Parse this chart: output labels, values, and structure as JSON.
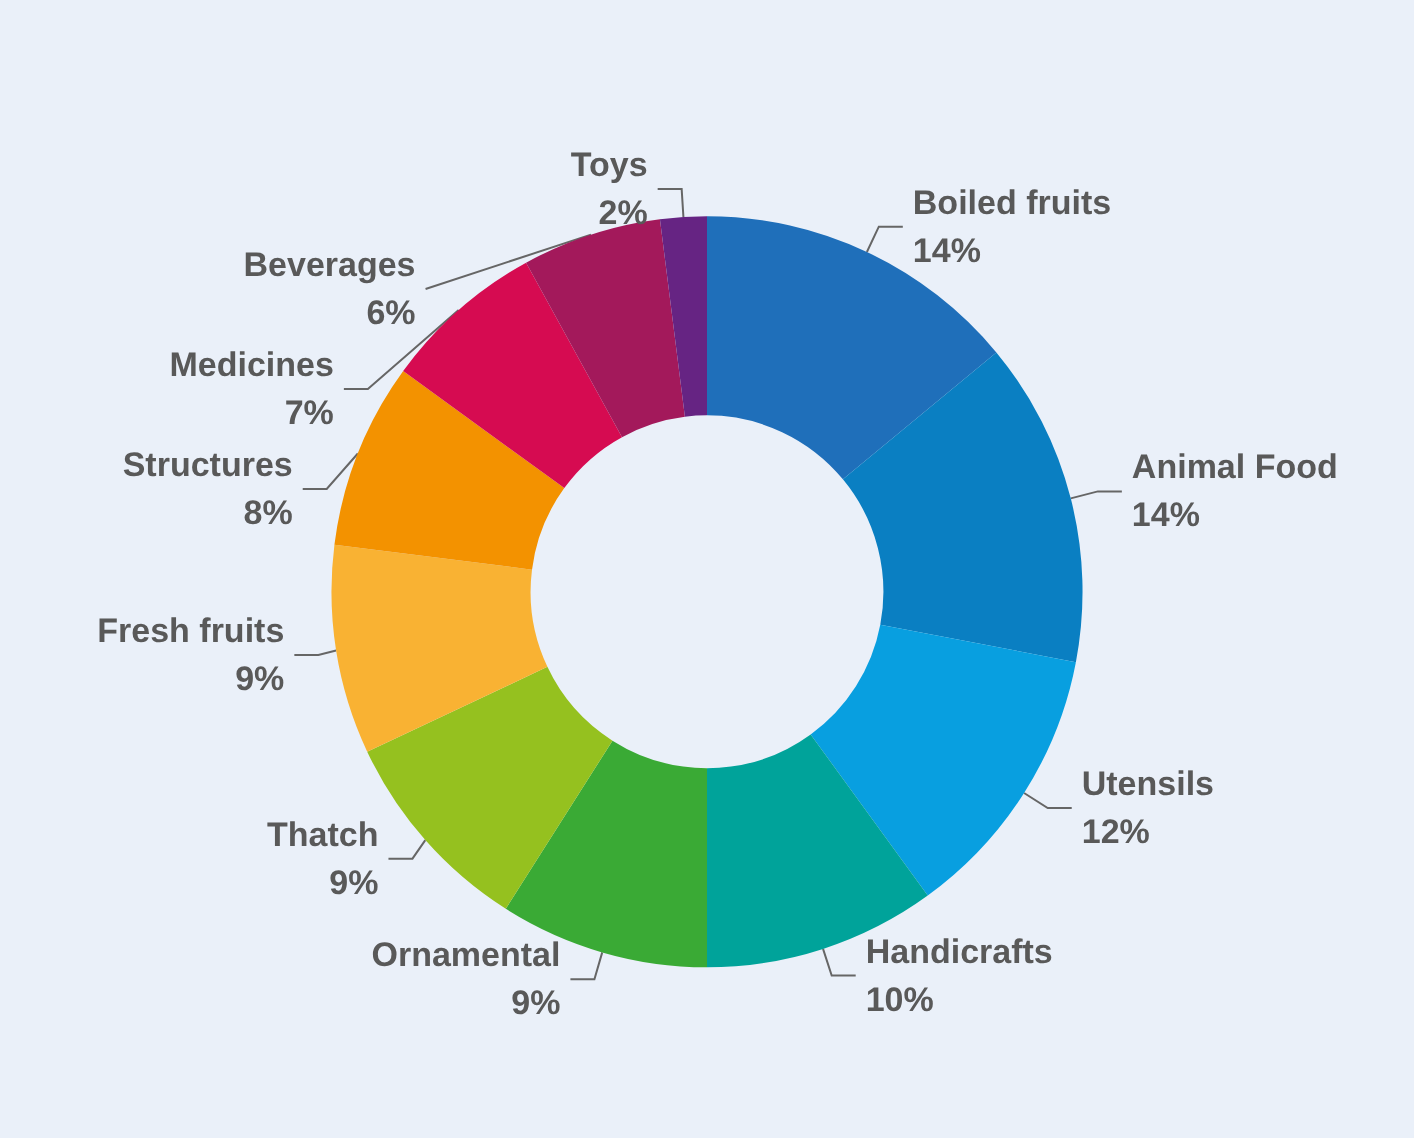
{
  "chart_data": {
    "type": "donut",
    "categories": [
      "Boiled fruits",
      "Animal Food",
      "Utensils",
      "Handicrafts",
      "Ornamental",
      "Thatch",
      "Fresh fruits",
      "Structures",
      "Medicines",
      "Beverages",
      "Toys"
    ],
    "values": [
      14,
      14,
      12,
      10,
      9,
      9,
      9,
      8,
      7,
      6,
      2
    ],
    "value_labels": [
      "14%",
      "14%",
      "12%",
      "10%",
      "9%",
      "9%",
      "9%",
      "8%",
      "7%",
      "6%",
      "2%"
    ],
    "colors": [
      "#1f6fba",
      "#0a7fc2",
      "#089fe0",
      "#00a39a",
      "#3aaa35",
      "#95c11f",
      "#f9b233",
      "#f39200",
      "#d60b51",
      "#a3195b",
      "#662483"
    ]
  }
}
